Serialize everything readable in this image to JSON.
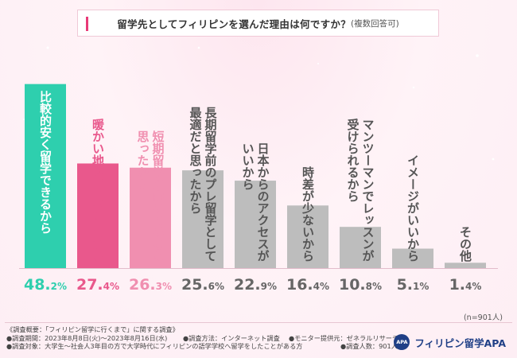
{
  "title": {
    "main": "留学先としてフィリピンを選んだ理由は何ですか？",
    "note": "(複数回答可)"
  },
  "sample_note": "(n=901人)",
  "footer": {
    "line1": "《調査概要：「フィリピン留学に行くまで」に関する調査》",
    "period": "●調査期間：2023年8月8日(火)～2023年8月16日(水)",
    "method": "●調査方法：インターネット調査",
    "provider": "●モニター提供元：ゼネラルリサーチ",
    "target": "●調査対象：大学生～社会人3年目の方で大学時代にフィリピンの語学学校へ留学をしたことがある方",
    "count": "●調査人数：901人"
  },
  "brand": {
    "logo": "APA",
    "name": "フィリピン留学APA"
  },
  "chart_data": {
    "type": "bar",
    "title": "留学先としてフィリピンを選んだ理由は何ですか？(複数回答可)",
    "ylabel": "",
    "xlabel": "",
    "ylim": [
      0,
      50
    ],
    "unit": "%",
    "categories": [
      "比較的安く留学できるから",
      "暖かい地域がよかったから",
      "短期留学に向いていると思ったから",
      "長期留学前のプレ留学として最適だと思ったから",
      "日本からのアクセスがいいから",
      "時差が少ないから",
      "マンツーマンでレッスンが受けられるから",
      "イメージがいいから",
      "その他"
    ],
    "label_columns": [
      [
        "比較的安く留学できるから"
      ],
      [
        "暖かい地域がよかったから"
      ],
      [
        "短期留学に向いていると",
        "思ったから"
      ],
      [
        "長期留学前のプレ留学として",
        "最適だと思ったから"
      ],
      [
        "日本からのアクセスが",
        "いいから"
      ],
      [
        "時差が少ないから"
      ],
      [
        "マンツーマンでレッスンが",
        "受けられるから"
      ],
      [
        "イメージがいいから"
      ],
      [
        "その他"
      ]
    ],
    "values": [
      48.2,
      27.4,
      26.3,
      25.6,
      22.9,
      16.4,
      10.8,
      5.1,
      1.4
    ],
    "colors": [
      "#2ecfae",
      "#e9588c",
      "#f08fb0",
      "#bdbdbd",
      "#bdbdbd",
      "#bdbdbd",
      "#bdbdbd",
      "#bdbdbd",
      "#bdbdbd"
    ],
    "label_colors": [
      "#ffffff",
      "#e9588c",
      "#f08fb0",
      "#555555",
      "#555555",
      "#555555",
      "#555555",
      "#555555",
      "#555555"
    ],
    "value_colors": [
      "#2ecfae",
      "#e9588c",
      "#f08fb0",
      "#666666",
      "#666666",
      "#666666",
      "#666666",
      "#666666",
      "#666666"
    ]
  }
}
